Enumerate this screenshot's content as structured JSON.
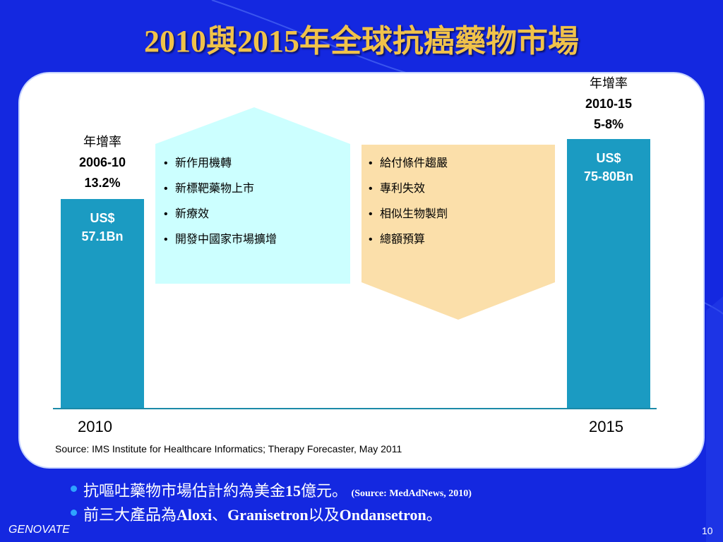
{
  "colors": {
    "background": "#1428e0",
    "title": "#f0c24a",
    "bar": "#1b9bc2",
    "up_arrow": "#ccffff",
    "down_arrow": "#fbdfaa"
  },
  "title": "2010與2015年全球抗癌藥物市場",
  "left_growth": {
    "label": "年增率",
    "period": "2006-10",
    "rate": "13.2%"
  },
  "left_bar": {
    "line1": "US$",
    "line2": "57.1Bn"
  },
  "right_growth": {
    "label": "年增率",
    "period": "2010-15",
    "rate": "5-8%"
  },
  "right_bar": {
    "line1": "US$",
    "line2": "75-80Bn"
  },
  "up_factors": [
    "新作用機轉",
    "新標靶藥物上市",
    "新療效",
    "開發中國家市場擴增"
  ],
  "down_factors": [
    "給付條件趨嚴",
    "專利失效",
    "相似生物製劑",
    "總額預算"
  ],
  "years": [
    "2010",
    "2015"
  ],
  "source": "Source: IMS Institute for Healthcare Informatics; Therapy Forecaster, May 2011",
  "notes": [
    {
      "pre": "抗嘔吐藥物市場估計約為美金",
      "num": "15",
      "post": "億元。",
      "small": "(Source: MedAdNews, 2010)"
    },
    {
      "pre": "前三大產品為",
      "p1": "Aloxi",
      "sep1": "、",
      "p2": "Granisetron",
      "sep2": "以及",
      "p3": "Ondansetron",
      "end": "。"
    }
  ],
  "footer": {
    "brand": "GENOVATE",
    "page": "10"
  }
}
